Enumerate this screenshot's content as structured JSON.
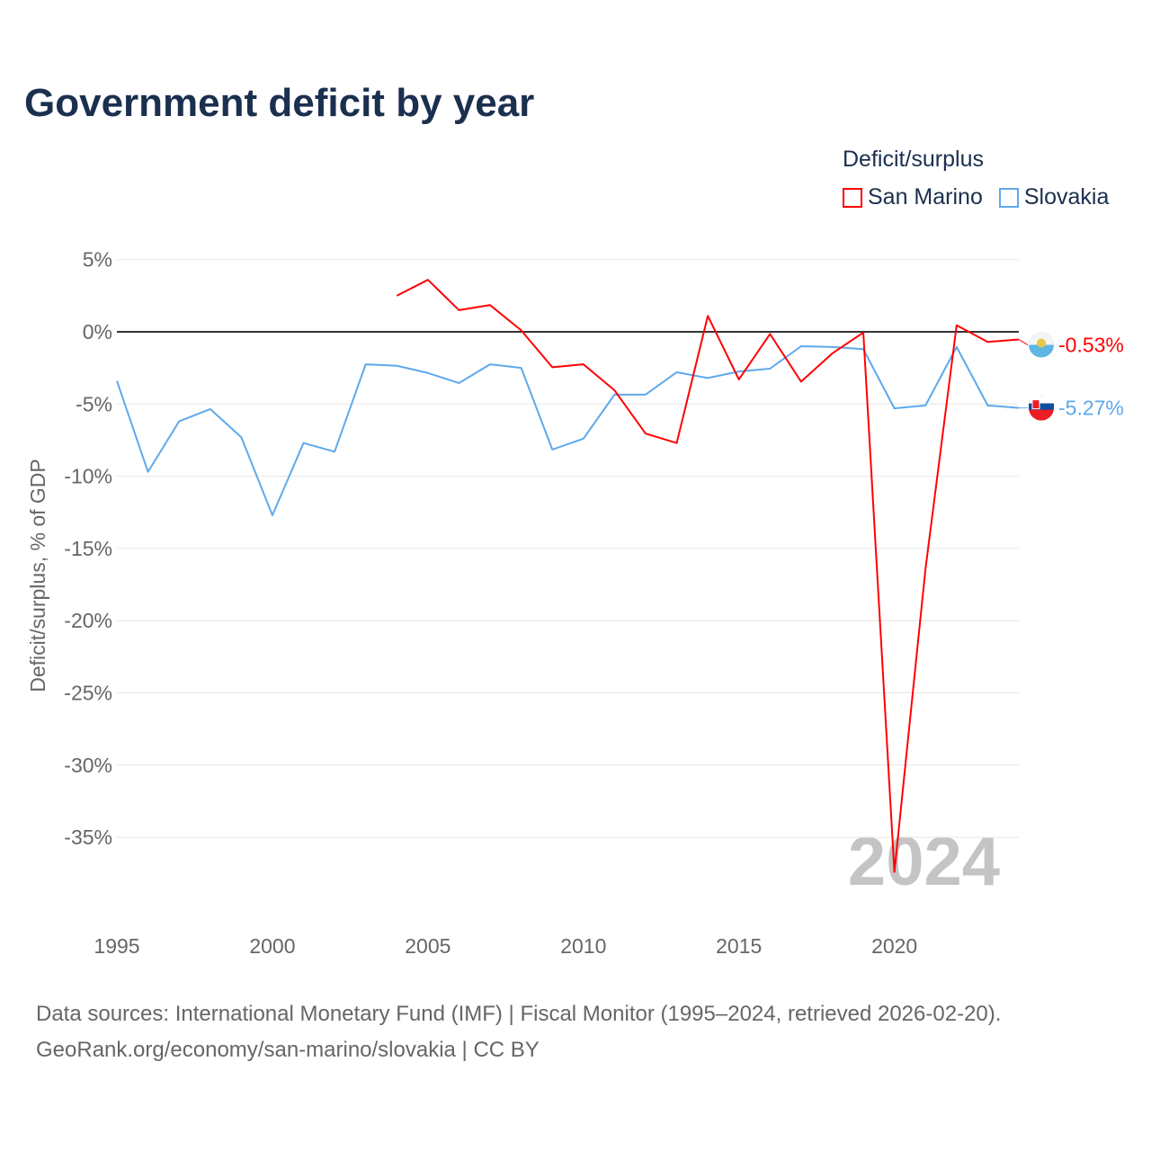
{
  "title": "Government deficit by year",
  "legend": {
    "title": "Deficit/surplus",
    "items": [
      {
        "name": "San Marino",
        "color": "#ff0000"
      },
      {
        "name": "Slovakia",
        "color": "#5ea9ec"
      }
    ]
  },
  "watermark_year": "2024",
  "source_line1": "Data sources: International Monetary Fund (IMF) | Fiscal Monitor (1995–2024, retrieved 2026-02-20).",
  "source_line2": "GeoRank.org/economy/san-marino/slovakia | CC BY",
  "chart_data": {
    "type": "line",
    "title": "Government deficit by year",
    "ylabel": "Deficit/surplus, % of GDP",
    "xlabel": "",
    "xlim": [
      1995,
      2024
    ],
    "ylim": [
      -40,
      5
    ],
    "yticks": [
      5,
      0,
      -5,
      -10,
      -15,
      -20,
      -25,
      -30,
      -35
    ],
    "ytick_labels": [
      "5%",
      "0%",
      "-5%",
      "-10%",
      "-15%",
      "-20%",
      "-25%",
      "-30%",
      "-35%"
    ],
    "xticks": [
      1995,
      2000,
      2005,
      2010,
      2015,
      2020
    ],
    "xtick_labels": [
      "1995",
      "2000",
      "2005",
      "2010",
      "2015",
      "2020"
    ],
    "grid": true,
    "series": [
      {
        "name": "San Marino",
        "color": "#ff0000",
        "end_label": "-0.53%",
        "x": [
          2004,
          2005,
          2006,
          2007,
          2008,
          2009,
          2010,
          2011,
          2012,
          2013,
          2014,
          2015,
          2016,
          2017,
          2018,
          2019,
          2020,
          2021,
          2022,
          2023,
          2024
        ],
        "values": [
          2.5,
          3.6,
          1.5,
          1.85,
          0.1,
          -2.45,
          -2.25,
          -4.05,
          -7.05,
          -7.7,
          1.1,
          -3.3,
          -0.15,
          -3.45,
          -1.5,
          -0.05,
          -37.4,
          -16.4,
          0.45,
          -0.7,
          -0.53
        ]
      },
      {
        "name": "Slovakia",
        "color": "#5ea9ec",
        "end_label": "-5.27%",
        "x": [
          1995,
          1996,
          1997,
          1998,
          1999,
          2000,
          2001,
          2002,
          2003,
          2004,
          2005,
          2006,
          2007,
          2008,
          2009,
          2010,
          2011,
          2012,
          2013,
          2014,
          2015,
          2016,
          2017,
          2018,
          2019,
          2020,
          2021,
          2022,
          2023,
          2024
        ],
        "values": [
          -3.4,
          -9.7,
          -6.2,
          -5.35,
          -7.3,
          -12.7,
          -7.7,
          -8.3,
          -2.25,
          -2.35,
          -2.85,
          -3.55,
          -2.25,
          -2.5,
          -8.15,
          -7.4,
          -4.35,
          -4.35,
          -2.8,
          -3.2,
          -2.75,
          -2.55,
          -1.0,
          -1.05,
          -1.2,
          -5.3,
          -5.1,
          -1.05,
          -5.1,
          -5.27
        ]
      }
    ]
  }
}
